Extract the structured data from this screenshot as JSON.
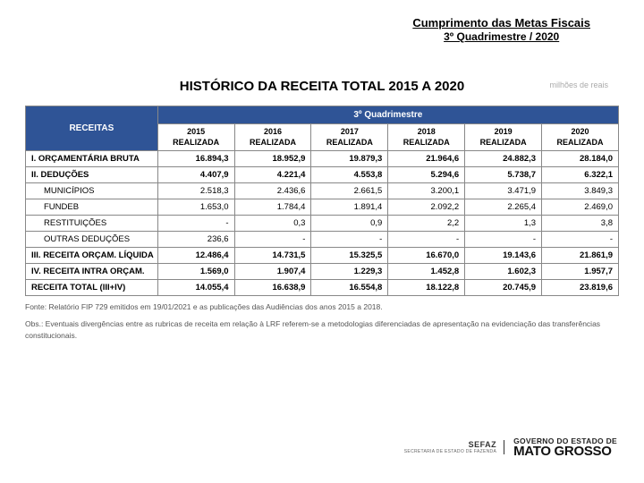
{
  "header": {
    "line1": "Cumprimento das Metas Fiscais",
    "line2": "3º Quadrimestre / 2020"
  },
  "title": "HISTÓRICO DA RECEITA TOTAL 2015 A 2020",
  "unit": "milhões de reais",
  "table": {
    "band_label": "3º Quadrimestre",
    "receitas_label": "RECEITAS",
    "years": [
      "2015",
      "2016",
      "2017",
      "2018",
      "2019",
      "2020"
    ],
    "realizada": "REALIZADA",
    "rows": [
      {
        "label": "I. ORÇAMENTÁRIA BRUTA",
        "indent": false,
        "bold": true,
        "vals": [
          "16.894,3",
          "18.952,9",
          "19.879,3",
          "21.964,6",
          "24.882,3",
          "28.184,0"
        ]
      },
      {
        "label": "II. DEDUÇÕES",
        "indent": false,
        "bold": true,
        "vals": [
          "4.407,9",
          "4.221,4",
          "4.553,8",
          "5.294,6",
          "5.738,7",
          "6.322,1"
        ]
      },
      {
        "label": "MUNICÍPIOS",
        "indent": true,
        "bold": false,
        "vals": [
          "2.518,3",
          "2.436,6",
          "2.661,5",
          "3.200,1",
          "3.471,9",
          "3.849,3"
        ]
      },
      {
        "label": "FUNDEB",
        "indent": true,
        "bold": false,
        "vals": [
          "1.653,0",
          "1.784,4",
          "1.891,4",
          "2.092,2",
          "2.265,4",
          "2.469,0"
        ]
      },
      {
        "label": "RESTITUIÇÕES",
        "indent": true,
        "bold": false,
        "vals": [
          "-",
          "0,3",
          "0,9",
          "2,2",
          "1,3",
          "3,8"
        ]
      },
      {
        "label": "OUTRAS DEDUÇÕES",
        "indent": true,
        "bold": false,
        "vals": [
          "236,6",
          "-",
          "-",
          "-",
          "-",
          "-"
        ]
      },
      {
        "label": "III. RECEITA ORÇAM. LÍQUIDA",
        "indent": false,
        "bold": true,
        "vals": [
          "12.486,4",
          "14.731,5",
          "15.325,5",
          "16.670,0",
          "19.143,6",
          "21.861,9"
        ]
      },
      {
        "label": "IV. RECEITA INTRA ORÇAM.",
        "indent": false,
        "bold": true,
        "vals": [
          "1.569,0",
          "1.907,4",
          "1.229,3",
          "1.452,8",
          "1.602,3",
          "1.957,7"
        ]
      },
      {
        "label": "RECEITA TOTAL (III+IV)",
        "indent": false,
        "bold": true,
        "vals": [
          "14.055,4",
          "16.638,9",
          "16.554,8",
          "18.122,8",
          "20.745,9",
          "23.819,6"
        ]
      }
    ]
  },
  "footnotes": {
    "f1": "Fonte: Relatório FIP 729 emitidos em 19/01/2021 e as publicações das Audiências dos anos 2015 a 2018.",
    "f2": "Obs.: Eventuais divergências entre as rubricas de receita em relação à LRF referem-se a metodologias diferenciadas de apresentação na evidenciação das transferências constitucionais."
  },
  "footer": {
    "sefaz_top": "SEFAZ",
    "sefaz_bot": "SECRETARIA DE ESTADO DE FAZENDA",
    "gov_top": "GOVERNO DO ESTADO DE",
    "gov_bot": "MATO GROSSO"
  },
  "style": {
    "band_bg": "#2f5496",
    "border": "#888888"
  }
}
